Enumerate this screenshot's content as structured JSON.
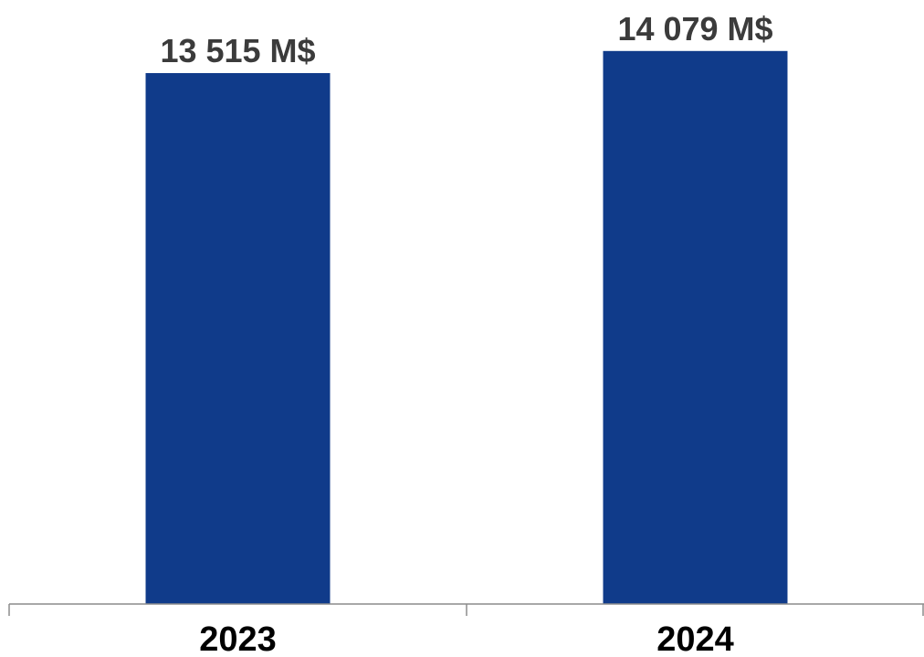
{
  "chart_data": {
    "type": "bar",
    "categories": [
      "2023",
      "2024"
    ],
    "values": [
      13515,
      14079
    ],
    "value_labels": [
      "13 515 M$",
      "14 079 M$"
    ],
    "title": "",
    "xlabel": "",
    "ylabel": "",
    "grid": false,
    "legend": "none",
    "colors": {
      "bar": "#103b8a",
      "axis": "#8c8c8c",
      "value_label": "#3b3b3b",
      "tick_label": "#000000"
    }
  }
}
